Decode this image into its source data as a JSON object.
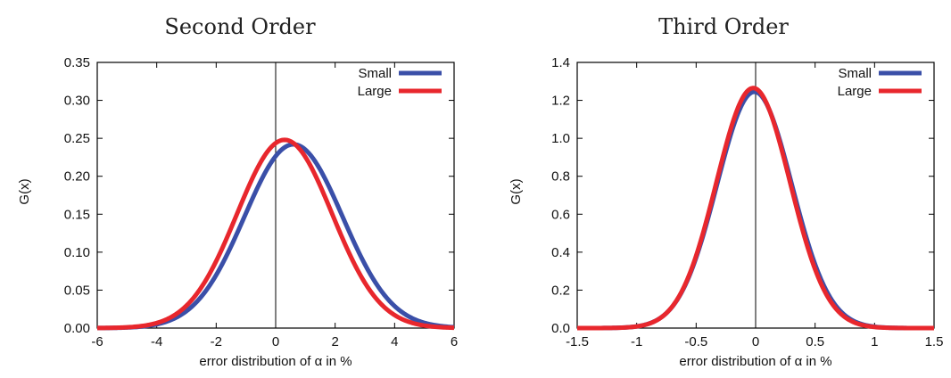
{
  "chart_data": [
    {
      "type": "line",
      "title": "Second Order",
      "xlabel": "error distribution of α in %",
      "ylabel": "G(x)",
      "xlim": [
        -6,
        6
      ],
      "ylim": [
        0,
        0.35
      ],
      "xticks": [
        "-6",
        "-4",
        "-2",
        "0",
        "2",
        "4",
        "6"
      ],
      "yticks": [
        "0.00",
        "0.05",
        "0.10",
        "0.15",
        "0.20",
        "0.25",
        "0.30",
        "0.35"
      ],
      "vline_x": 0,
      "legend_position": "top-right",
      "series": [
        {
          "name": "Small",
          "color": "#3a4fa8",
          "distribution": "gaussian",
          "mean": 0.6,
          "sd": 1.65,
          "peak": 0.242
        },
        {
          "name": "Large",
          "color": "#e8272d",
          "distribution": "gaussian",
          "mean": 0.3,
          "sd": 1.6,
          "peak": 0.248
        }
      ]
    },
    {
      "type": "line",
      "title": "Third Order",
      "xlabel": "error distribution of α in %",
      "ylabel": "G(x)",
      "xlim": [
        -1.5,
        1.5
      ],
      "ylim": [
        0,
        1.4
      ],
      "xticks": [
        "-1.5",
        "-1",
        "-0.5",
        "0",
        "0.5",
        "1",
        "1.5"
      ],
      "yticks": [
        "0.0",
        "0.2",
        "0.4",
        "0.6",
        "0.8",
        "1.0",
        "1.2",
        "1.4"
      ],
      "vline_x": 0,
      "legend_position": "top-right",
      "series": [
        {
          "name": "Small",
          "color": "#3a4fa8",
          "distribution": "gaussian",
          "mean": -0.01,
          "sd": 0.315,
          "peak": 1.245
        },
        {
          "name": "Large",
          "color": "#e8272d",
          "distribution": "gaussian",
          "mean": -0.02,
          "sd": 0.31,
          "peak": 1.265
        }
      ]
    }
  ]
}
